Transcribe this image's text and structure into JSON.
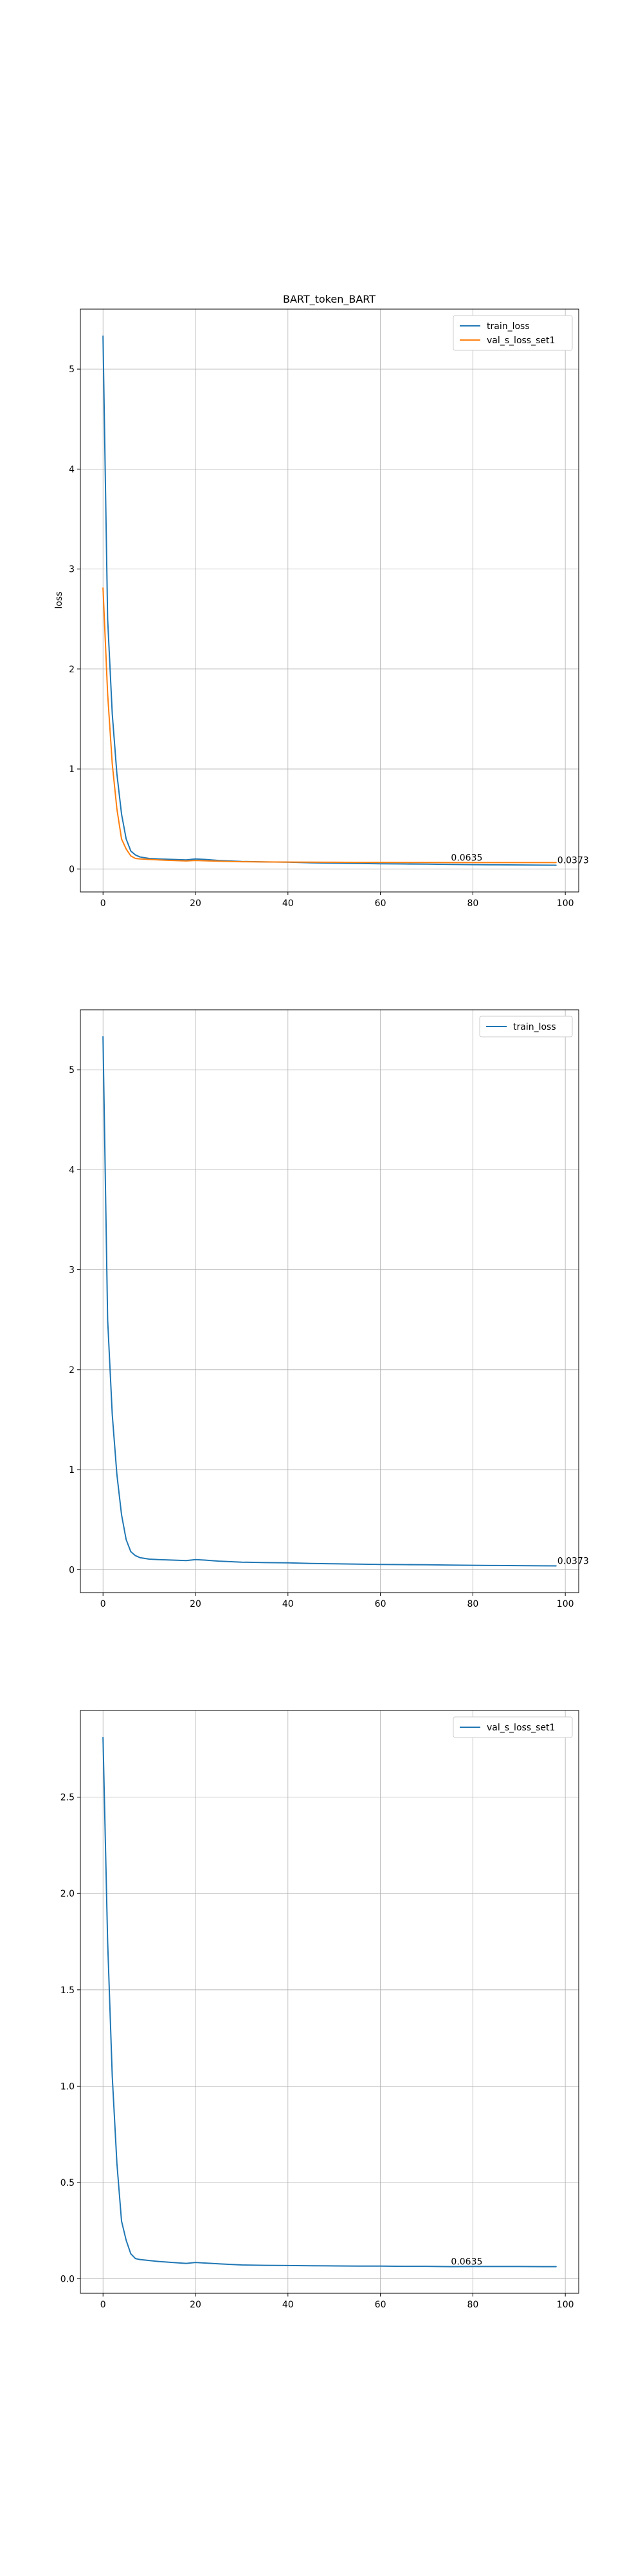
{
  "colors": {
    "train_loss": "#1f77b4",
    "val_s_loss_set1": "#ff7f0e"
  },
  "chart_data": [
    {
      "type": "line",
      "title": "BART_token_BART",
      "xlabel": "",
      "ylabel": "loss",
      "xlim": [
        -4.9,
        102.9
      ],
      "ylim": [
        -0.23,
        5.6
      ],
      "xticks": [
        0,
        20,
        40,
        60,
        80,
        100
      ],
      "yticks": [
        0,
        1,
        2,
        3,
        4,
        5
      ],
      "ytick_labels": [
        "0",
        "1",
        "2",
        "3",
        "4",
        "5"
      ],
      "grid": true,
      "legend_position": "top-right",
      "series": [
        {
          "name": "train_loss",
          "color": "#1f77b4",
          "x": [
            0,
            1,
            2,
            3,
            4,
            5,
            6,
            7,
            8,
            10,
            12,
            15,
            18,
            20,
            22,
            25,
            30,
            35,
            40,
            45,
            50,
            55,
            60,
            65,
            70,
            75,
            80,
            85,
            90,
            95,
            98
          ],
          "y": [
            5.33,
            2.5,
            1.55,
            0.95,
            0.55,
            0.3,
            0.18,
            0.14,
            0.12,
            0.105,
            0.1,
            0.095,
            0.09,
            0.1,
            0.095,
            0.085,
            0.075,
            0.07,
            0.068,
            0.062,
            0.058,
            0.055,
            0.052,
            0.05,
            0.048,
            0.045,
            0.043,
            0.041,
            0.04,
            0.038,
            0.0373
          ]
        },
        {
          "name": "val_s_loss_set1",
          "color": "#ff7f0e",
          "x": [
            0,
            1,
            2,
            3,
            4,
            5,
            6,
            7,
            8,
            10,
            12,
            15,
            18,
            20,
            22,
            25,
            30,
            35,
            40,
            45,
            50,
            55,
            60,
            65,
            70,
            75,
            80,
            85,
            90,
            95,
            98
          ],
          "y": [
            2.81,
            1.75,
            1.05,
            0.6,
            0.3,
            0.2,
            0.13,
            0.105,
            0.1,
            0.095,
            0.09,
            0.085,
            0.08,
            0.085,
            0.082,
            0.078,
            0.072,
            0.07,
            0.069,
            0.068,
            0.067,
            0.066,
            0.066,
            0.065,
            0.065,
            0.0635,
            0.064,
            0.064,
            0.064,
            0.0635,
            0.0635
          ]
        }
      ],
      "annotations": [
        {
          "text": "0.0635",
          "x": 75,
          "y": 0.0635
        },
        {
          "text": "0.0373",
          "x": 98,
          "y": 0.0373
        }
      ]
    },
    {
      "type": "line",
      "title": "",
      "xlabel": "",
      "ylabel": "",
      "xlim": [
        -4.9,
        102.9
      ],
      "ylim": [
        -0.23,
        5.6
      ],
      "xticks": [
        0,
        20,
        40,
        60,
        80,
        100
      ],
      "yticks": [
        0,
        1,
        2,
        3,
        4,
        5
      ],
      "ytick_labels": [
        "0",
        "1",
        "2",
        "3",
        "4",
        "5"
      ],
      "grid": true,
      "legend_position": "top-right",
      "series": [
        {
          "name": "train_loss",
          "color": "#1f77b4",
          "x": [
            0,
            1,
            2,
            3,
            4,
            5,
            6,
            7,
            8,
            10,
            12,
            15,
            18,
            20,
            22,
            25,
            30,
            35,
            40,
            45,
            50,
            55,
            60,
            65,
            70,
            75,
            80,
            85,
            90,
            95,
            98
          ],
          "y": [
            5.33,
            2.5,
            1.55,
            0.95,
            0.55,
            0.3,
            0.18,
            0.14,
            0.12,
            0.105,
            0.1,
            0.095,
            0.09,
            0.1,
            0.095,
            0.085,
            0.075,
            0.07,
            0.068,
            0.062,
            0.058,
            0.055,
            0.052,
            0.05,
            0.048,
            0.045,
            0.043,
            0.041,
            0.04,
            0.038,
            0.0373
          ]
        }
      ],
      "annotations": [
        {
          "text": "0.0373",
          "x": 98,
          "y": 0.0373
        }
      ]
    },
    {
      "type": "line",
      "title": "",
      "xlabel": "",
      "ylabel": "",
      "xlim": [
        -4.9,
        102.9
      ],
      "ylim": [
        -0.075,
        2.95
      ],
      "xticks": [
        0,
        20,
        40,
        60,
        80,
        100
      ],
      "yticks": [
        0,
        0.5,
        1,
        1.5,
        2,
        2.5
      ],
      "ytick_labels": [
        "0.0",
        "0.5",
        "1.0",
        "1.5",
        "2.0",
        "2.5"
      ],
      "grid": true,
      "legend_position": "top-right",
      "series": [
        {
          "name": "val_s_loss_set1",
          "color": "#1f77b4",
          "x": [
            0,
            1,
            2,
            3,
            4,
            5,
            6,
            7,
            8,
            10,
            12,
            15,
            18,
            20,
            22,
            25,
            30,
            35,
            40,
            45,
            50,
            55,
            60,
            65,
            70,
            75,
            80,
            85,
            90,
            95,
            98
          ],
          "y": [
            2.81,
            1.75,
            1.05,
            0.6,
            0.3,
            0.2,
            0.13,
            0.105,
            0.1,
            0.095,
            0.09,
            0.085,
            0.08,
            0.085,
            0.082,
            0.078,
            0.072,
            0.07,
            0.069,
            0.068,
            0.067,
            0.066,
            0.066,
            0.065,
            0.065,
            0.0635,
            0.064,
            0.064,
            0.064,
            0.0635,
            0.0635
          ]
        }
      ],
      "annotations": [
        {
          "text": "0.0635",
          "x": 75,
          "y": 0.0635
        }
      ]
    }
  ]
}
